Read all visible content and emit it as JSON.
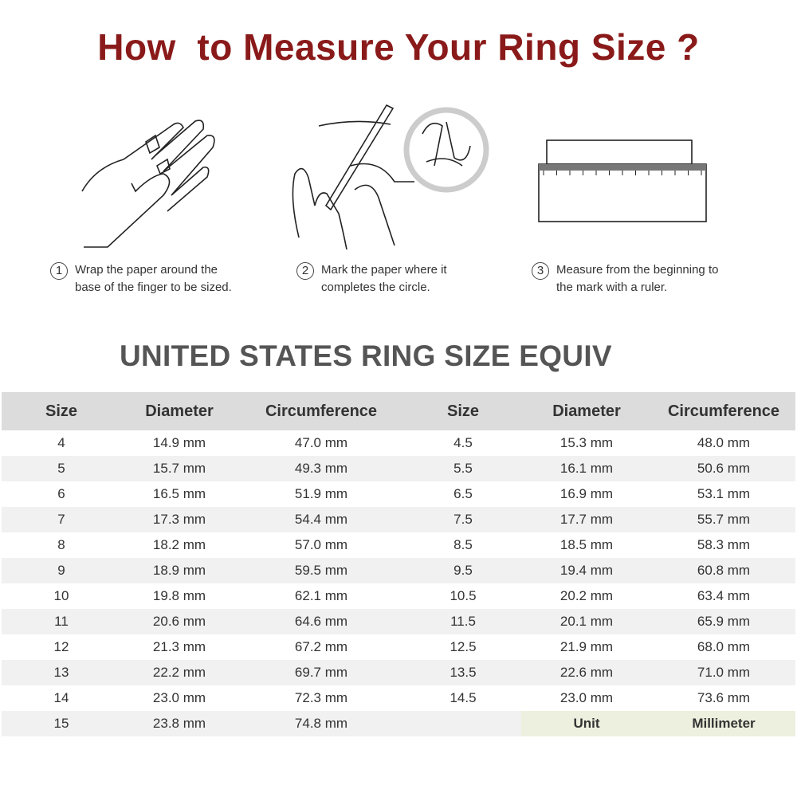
{
  "title": "How  to Measure Your Ring Size ?",
  "colors": {
    "title": "#8a1a1a",
    "subhead": "#555555",
    "header_bg": "#dcdcdc",
    "alt_row_bg": "#f1f1f1",
    "unit_bg": "#eef0df"
  },
  "steps": [
    {
      "num": "1",
      "line1": "Wrap the paper around the",
      "line2": "base of the finger to be sized.",
      "icon": "hand-wrap-paper-illustration"
    },
    {
      "num": "2",
      "line1": "Mark the paper where it",
      "line2": "completes the circle.",
      "icon": "hand-pen-mark-illustration"
    },
    {
      "num": "3",
      "line1": "Measure from the beginning to",
      "line2": "the mark with a ruler.",
      "icon": "ruler-paper-illustration"
    }
  ],
  "subhead": "UNITED STATES RING SIZE EQUIV",
  "table": {
    "headers": [
      "Size",
      "Diameter",
      "Circumference",
      "Size",
      "Diameter",
      "Circumference"
    ],
    "rows": [
      [
        "4",
        "14.9 mm",
        "47.0 mm",
        "4.5",
        "15.3 mm",
        "48.0 mm"
      ],
      [
        "5",
        "15.7 mm",
        "49.3  mm",
        "5.5",
        "16.1 mm",
        "50.6 mm"
      ],
      [
        "6",
        "16.5 mm",
        "51.9 mm",
        "6.5",
        "16.9 mm",
        "53.1 mm"
      ],
      [
        "7",
        "17.3 mm",
        "54.4 mm",
        "7.5",
        "17.7 mm",
        "55.7 mm"
      ],
      [
        "8",
        "18.2 mm",
        "57.0 mm",
        "8.5",
        "18.5 mm",
        "58.3 mm"
      ],
      [
        "9",
        "18.9 mm",
        "59.5 mm",
        "9.5",
        "19.4 mm",
        "60.8 mm"
      ],
      [
        "10",
        "19.8  mm",
        "62.1 mm",
        "10.5",
        "20.2 mm",
        "63.4 mm"
      ],
      [
        "11",
        "20.6  mm",
        "64.6 mm",
        "11.5",
        "20.1 mm",
        "65.9 mm"
      ],
      [
        "12",
        "21.3  mm",
        "67.2 mm",
        "12.5",
        "21.9 mm",
        "68.0 mm"
      ],
      [
        "13",
        "22.2 mm",
        "69.7 mm",
        "13.5",
        "22.6 mm",
        "71.0 mm"
      ],
      [
        "14",
        "23.0 mm",
        "72.3 mm",
        "14.5",
        "23.0 mm",
        "73.6 mm"
      ],
      [
        "15",
        "23.8 mm",
        "74.8 mm",
        "",
        "Unit",
        "Millimeter"
      ]
    ]
  }
}
